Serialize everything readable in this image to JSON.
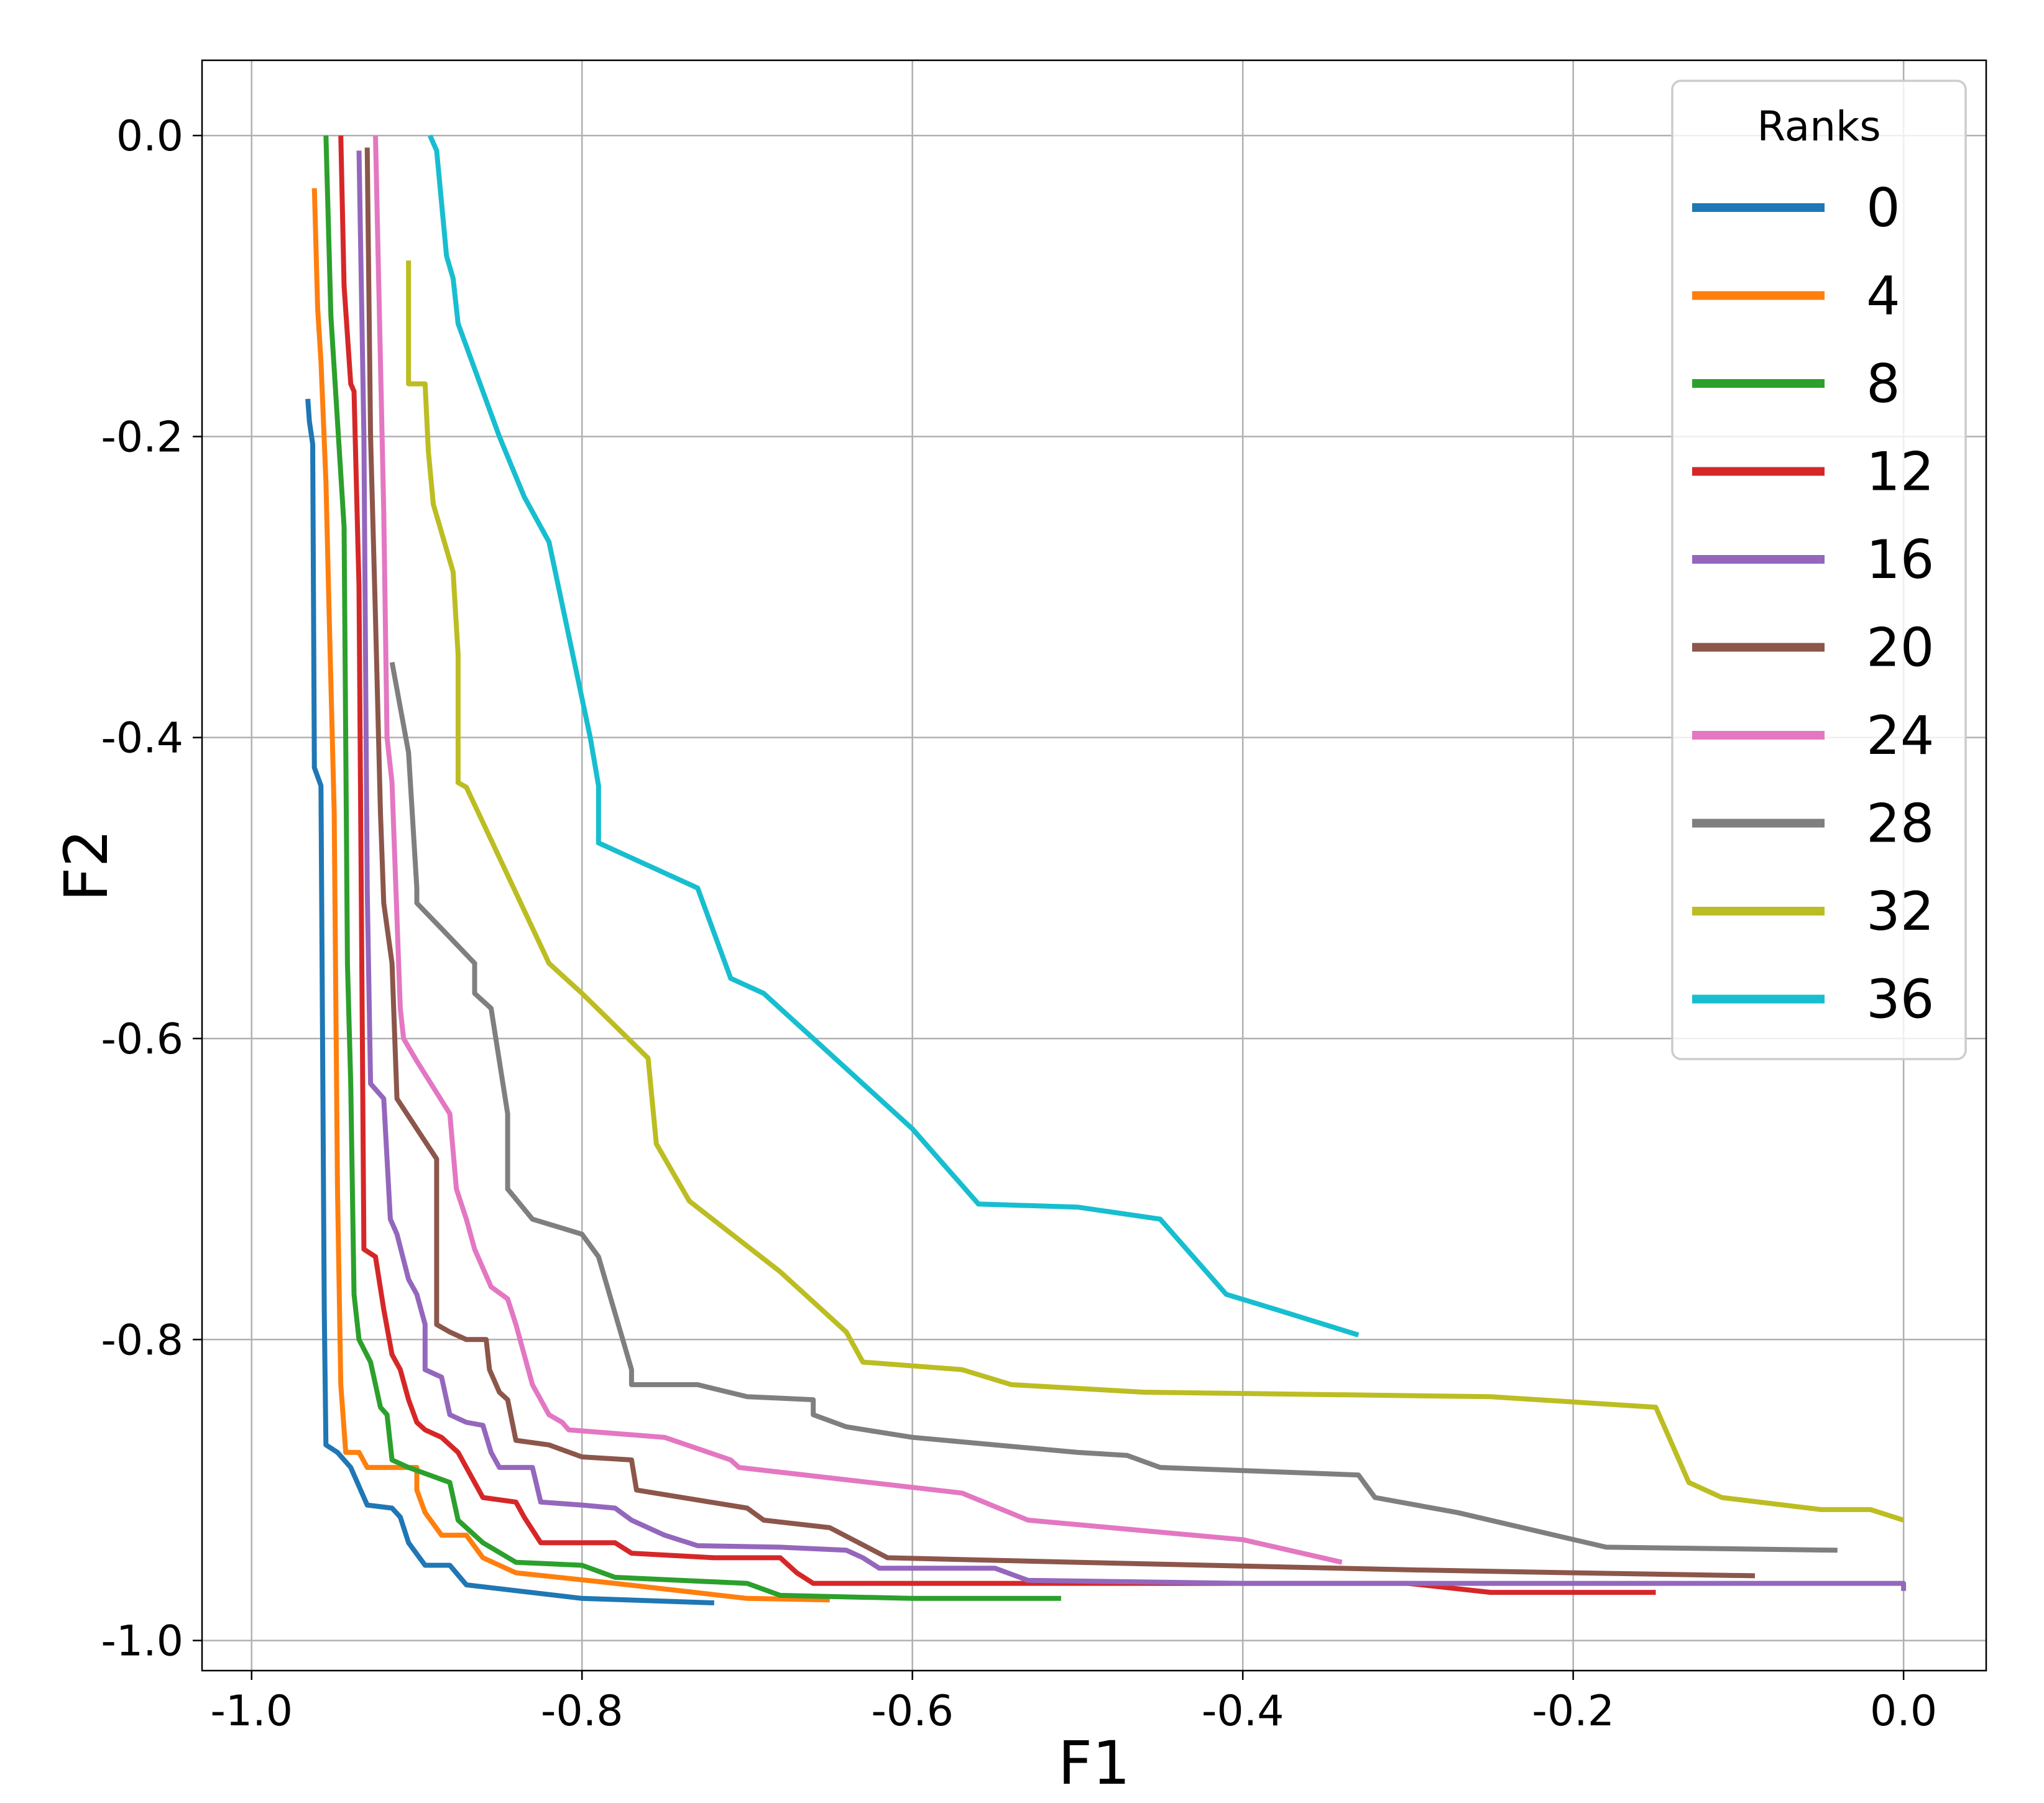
{
  "chart_data": {
    "type": "line",
    "title": "",
    "xlabel": "F1",
    "ylabel": "F2",
    "xlim": [
      -1.03,
      0.05
    ],
    "ylim": [
      -1.02,
      0.05
    ],
    "xticks": [
      -1.0,
      -0.8,
      -0.6,
      -0.4,
      -0.2,
      0.0
    ],
    "xtick_labels": [
      "-1.0",
      "-0.8",
      "-0.6",
      "-0.4",
      "-0.2",
      "0.0"
    ],
    "yticks": [
      0.0,
      -0.2,
      -0.4,
      -0.6,
      -0.8,
      -1.0
    ],
    "ytick_labels": [
      "0.0",
      "-0.2",
      "-0.4",
      "-0.6",
      "-0.8",
      "-1.0"
    ],
    "grid": true,
    "legend": {
      "title": "Ranks",
      "position": "top-right"
    },
    "series": [
      {
        "name": "0",
        "color": "#1f77b4",
        "points": [
          [
            -0.966,
            -0.175
          ],
          [
            -0.965,
            -0.19
          ],
          [
            -0.963,
            -0.205
          ],
          [
            -0.962,
            -0.42
          ],
          [
            -0.958,
            -0.432
          ],
          [
            -0.956,
            -0.78
          ],
          [
            -0.955,
            -0.87
          ],
          [
            -0.948,
            -0.875
          ],
          [
            -0.94,
            -0.885
          ],
          [
            -0.93,
            -0.91
          ],
          [
            -0.915,
            -0.912
          ],
          [
            -0.91,
            -0.918
          ],
          [
            -0.905,
            -0.935
          ],
          [
            -0.895,
            -0.95
          ],
          [
            -0.88,
            -0.95
          ],
          [
            -0.87,
            -0.963
          ],
          [
            -0.8,
            -0.972
          ],
          [
            -0.72,
            -0.975
          ]
        ]
      },
      {
        "name": "4",
        "color": "#ff7f0e",
        "points": [
          [
            -0.962,
            -0.035
          ],
          [
            -0.96,
            -0.115
          ],
          [
            -0.958,
            -0.15
          ],
          [
            -0.955,
            -0.23
          ],
          [
            -0.953,
            -0.32
          ],
          [
            -0.95,
            -0.45
          ],
          [
            -0.948,
            -0.7
          ],
          [
            -0.946,
            -0.83
          ],
          [
            -0.944,
            -0.86
          ],
          [
            -0.943,
            -0.875
          ],
          [
            -0.935,
            -0.875
          ],
          [
            -0.93,
            -0.885
          ],
          [
            -0.9,
            -0.885
          ],
          [
            -0.9,
            -0.9
          ],
          [
            -0.895,
            -0.915
          ],
          [
            -0.885,
            -0.93
          ],
          [
            -0.87,
            -0.93
          ],
          [
            -0.86,
            -0.945
          ],
          [
            -0.84,
            -0.955
          ],
          [
            -0.78,
            -0.962
          ],
          [
            -0.7,
            -0.972
          ],
          [
            -0.65,
            -0.973
          ]
        ]
      },
      {
        "name": "8",
        "color": "#2ca02c",
        "points": [
          [
            -0.955,
            0.0
          ],
          [
            -0.952,
            -0.12
          ],
          [
            -0.948,
            -0.19
          ],
          [
            -0.944,
            -0.26
          ],
          [
            -0.942,
            -0.55
          ],
          [
            -0.94,
            -0.63
          ],
          [
            -0.938,
            -0.77
          ],
          [
            -0.935,
            -0.8
          ],
          [
            -0.928,
            -0.815
          ],
          [
            -0.922,
            -0.845
          ],
          [
            -0.918,
            -0.85
          ],
          [
            -0.915,
            -0.88
          ],
          [
            -0.905,
            -0.885
          ],
          [
            -0.88,
            -0.895
          ],
          [
            -0.875,
            -0.92
          ],
          [
            -0.86,
            -0.935
          ],
          [
            -0.84,
            -0.948
          ],
          [
            -0.8,
            -0.95
          ],
          [
            -0.78,
            -0.958
          ],
          [
            -0.7,
            -0.962
          ],
          [
            -0.69,
            -0.966
          ],
          [
            -0.68,
            -0.97
          ],
          [
            -0.6,
            -0.972
          ],
          [
            -0.51,
            -0.972
          ]
        ]
      },
      {
        "name": "12",
        "color": "#d62728",
        "points": [
          [
            -0.946,
            0.0
          ],
          [
            -0.944,
            -0.1
          ],
          [
            -0.94,
            -0.165
          ],
          [
            -0.938,
            -0.17
          ],
          [
            -0.935,
            -0.3
          ],
          [
            -0.932,
            -0.74
          ],
          [
            -0.925,
            -0.745
          ],
          [
            -0.92,
            -0.78
          ],
          [
            -0.915,
            -0.81
          ],
          [
            -0.91,
            -0.82
          ],
          [
            -0.905,
            -0.84
          ],
          [
            -0.9,
            -0.855
          ],
          [
            -0.895,
            -0.86
          ],
          [
            -0.885,
            -0.865
          ],
          [
            -0.875,
            -0.875
          ],
          [
            -0.865,
            -0.895
          ],
          [
            -0.86,
            -0.905
          ],
          [
            -0.84,
            -0.908
          ],
          [
            -0.835,
            -0.918
          ],
          [
            -0.825,
            -0.935
          ],
          [
            -0.78,
            -0.935
          ],
          [
            -0.77,
            -0.942
          ],
          [
            -0.72,
            -0.945
          ],
          [
            -0.68,
            -0.945
          ],
          [
            -0.67,
            -0.955
          ],
          [
            -0.66,
            -0.962
          ],
          [
            -0.5,
            -0.962
          ],
          [
            -0.3,
            -0.962
          ],
          [
            -0.25,
            -0.968
          ],
          [
            -0.15,
            -0.968
          ]
        ]
      },
      {
        "name": "16",
        "color": "#9467bd",
        "points": [
          [
            -0.935,
            -0.01
          ],
          [
            -0.932,
            -0.2
          ],
          [
            -0.93,
            -0.5
          ],
          [
            -0.928,
            -0.63
          ],
          [
            -0.92,
            -0.64
          ],
          [
            -0.918,
            -0.68
          ],
          [
            -0.916,
            -0.72
          ],
          [
            -0.912,
            -0.73
          ],
          [
            -0.905,
            -0.76
          ],
          [
            -0.9,
            -0.77
          ],
          [
            -0.895,
            -0.79
          ],
          [
            -0.895,
            -0.82
          ],
          [
            -0.885,
            -0.825
          ],
          [
            -0.88,
            -0.85
          ],
          [
            -0.87,
            -0.855
          ],
          [
            -0.86,
            -0.857
          ],
          [
            -0.855,
            -0.875
          ],
          [
            -0.85,
            -0.885
          ],
          [
            -0.83,
            -0.885
          ],
          [
            -0.825,
            -0.908
          ],
          [
            -0.8,
            -0.91
          ],
          [
            -0.78,
            -0.912
          ],
          [
            -0.77,
            -0.92
          ],
          [
            -0.75,
            -0.93
          ],
          [
            -0.73,
            -0.937
          ],
          [
            -0.68,
            -0.938
          ],
          [
            -0.64,
            -0.94
          ],
          [
            -0.63,
            -0.945
          ],
          [
            -0.62,
            -0.952
          ],
          [
            -0.55,
            -0.952
          ],
          [
            -0.53,
            -0.96
          ],
          [
            -0.4,
            -0.962
          ],
          [
            -0.2,
            -0.962
          ],
          [
            0.0,
            -0.962
          ],
          [
            0.0,
            -0.967
          ]
        ]
      },
      {
        "name": "20",
        "color": "#8c564b",
        "points": [
          [
            -0.93,
            -0.008
          ],
          [
            -0.928,
            -0.2
          ],
          [
            -0.925,
            -0.32
          ],
          [
            -0.922,
            -0.45
          ],
          [
            -0.92,
            -0.51
          ],
          [
            -0.915,
            -0.55
          ],
          [
            -0.912,
            -0.64
          ],
          [
            -0.9,
            -0.66
          ],
          [
            -0.888,
            -0.68
          ],
          [
            -0.888,
            -0.79
          ],
          [
            -0.88,
            -0.795
          ],
          [
            -0.87,
            -0.8
          ],
          [
            -0.858,
            -0.8
          ],
          [
            -0.856,
            -0.82
          ],
          [
            -0.85,
            -0.835
          ],
          [
            -0.845,
            -0.84
          ],
          [
            -0.84,
            -0.867
          ],
          [
            -0.82,
            -0.87
          ],
          [
            -0.8,
            -0.878
          ],
          [
            -0.77,
            -0.88
          ],
          [
            -0.767,
            -0.9
          ],
          [
            -0.7,
            -0.912
          ],
          [
            -0.69,
            -0.92
          ],
          [
            -0.65,
            -0.925
          ],
          [
            -0.615,
            -0.945
          ],
          [
            -0.5,
            -0.948
          ],
          [
            -0.3,
            -0.953
          ],
          [
            -0.2,
            -0.955
          ],
          [
            -0.09,
            -0.957
          ]
        ]
      },
      {
        "name": "24",
        "color": "#e377c2",
        "points": [
          [
            -0.925,
            0.0
          ],
          [
            -0.92,
            -0.25
          ],
          [
            -0.918,
            -0.4
          ],
          [
            -0.915,
            -0.43
          ],
          [
            -0.91,
            -0.58
          ],
          [
            -0.908,
            -0.6
          ],
          [
            -0.9,
            -0.615
          ],
          [
            -0.88,
            -0.65
          ],
          [
            -0.876,
            -0.7
          ],
          [
            -0.87,
            -0.72
          ],
          [
            -0.865,
            -0.74
          ],
          [
            -0.855,
            -0.765
          ],
          [
            -0.845,
            -0.773
          ],
          [
            -0.84,
            -0.79
          ],
          [
            -0.835,
            -0.81
          ],
          [
            -0.83,
            -0.83
          ],
          [
            -0.825,
            -0.84
          ],
          [
            -0.82,
            -0.85
          ],
          [
            -0.812,
            -0.855
          ],
          [
            -0.808,
            -0.86
          ],
          [
            -0.75,
            -0.865
          ],
          [
            -0.71,
            -0.88
          ],
          [
            -0.705,
            -0.885
          ],
          [
            -0.57,
            -0.902
          ],
          [
            -0.53,
            -0.92
          ],
          [
            -0.4,
            -0.933
          ],
          [
            -0.34,
            -0.948
          ]
        ]
      },
      {
        "name": "28",
        "color": "#7f7f7f",
        "points": [
          [
            -0.915,
            -0.35
          ],
          [
            -0.91,
            -0.38
          ],
          [
            -0.905,
            -0.41
          ],
          [
            -0.9,
            -0.5
          ],
          [
            -0.9,
            -0.51
          ],
          [
            -0.885,
            -0.527
          ],
          [
            -0.865,
            -0.55
          ],
          [
            -0.865,
            -0.57
          ],
          [
            -0.855,
            -0.58
          ],
          [
            -0.845,
            -0.65
          ],
          [
            -0.845,
            -0.7
          ],
          [
            -0.83,
            -0.72
          ],
          [
            -0.8,
            -0.73
          ],
          [
            -0.79,
            -0.745
          ],
          [
            -0.77,
            -0.82
          ],
          [
            -0.77,
            -0.83
          ],
          [
            -0.73,
            -0.83
          ],
          [
            -0.7,
            -0.838
          ],
          [
            -0.66,
            -0.84
          ],
          [
            -0.66,
            -0.85
          ],
          [
            -0.64,
            -0.858
          ],
          [
            -0.6,
            -0.865
          ],
          [
            -0.5,
            -0.875
          ],
          [
            -0.47,
            -0.877
          ],
          [
            -0.45,
            -0.885
          ],
          [
            -0.33,
            -0.89
          ],
          [
            -0.32,
            -0.905
          ],
          [
            -0.27,
            -0.915
          ],
          [
            -0.18,
            -0.938
          ],
          [
            -0.04,
            -0.94
          ]
        ]
      },
      {
        "name": "32",
        "color": "#bcbd22",
        "points": [
          [
            -0.905,
            -0.083
          ],
          [
            -0.905,
            -0.165
          ],
          [
            -0.895,
            -0.165
          ],
          [
            -0.893,
            -0.21
          ],
          [
            -0.89,
            -0.245
          ],
          [
            -0.878,
            -0.29
          ],
          [
            -0.875,
            -0.345
          ],
          [
            -0.875,
            -0.43
          ],
          [
            -0.87,
            -0.433
          ],
          [
            -0.82,
            -0.55
          ],
          [
            -0.8,
            -0.57
          ],
          [
            -0.76,
            -0.613
          ],
          [
            -0.755,
            -0.67
          ],
          [
            -0.735,
            -0.708
          ],
          [
            -0.68,
            -0.755
          ],
          [
            -0.64,
            -0.795
          ],
          [
            -0.63,
            -0.815
          ],
          [
            -0.57,
            -0.82
          ],
          [
            -0.54,
            -0.83
          ],
          [
            -0.46,
            -0.835
          ],
          [
            -0.25,
            -0.838
          ],
          [
            -0.15,
            -0.845
          ],
          [
            -0.13,
            -0.895
          ],
          [
            -0.11,
            -0.905
          ],
          [
            -0.05,
            -0.913
          ],
          [
            -0.02,
            -0.913
          ],
          [
            0.0,
            -0.92
          ]
        ]
      },
      {
        "name": "36",
        "color": "#17becf",
        "points": [
          [
            -0.892,
            0.0
          ],
          [
            -0.888,
            -0.01
          ],
          [
            -0.882,
            -0.08
          ],
          [
            -0.878,
            -0.095
          ],
          [
            -0.875,
            -0.125
          ],
          [
            -0.85,
            -0.2
          ],
          [
            -0.835,
            -0.24
          ],
          [
            -0.82,
            -0.27
          ],
          [
            -0.795,
            -0.4
          ],
          [
            -0.79,
            -0.432
          ],
          [
            -0.79,
            -0.47
          ],
          [
            -0.75,
            -0.49
          ],
          [
            -0.73,
            -0.5
          ],
          [
            -0.71,
            -0.56
          ],
          [
            -0.69,
            -0.57
          ],
          [
            -0.6,
            -0.66
          ],
          [
            -0.56,
            -0.71
          ],
          [
            -0.5,
            -0.712
          ],
          [
            -0.45,
            -0.72
          ],
          [
            -0.41,
            -0.77
          ],
          [
            -0.38,
            -0.78
          ],
          [
            -0.33,
            -0.797
          ]
        ]
      }
    ]
  }
}
